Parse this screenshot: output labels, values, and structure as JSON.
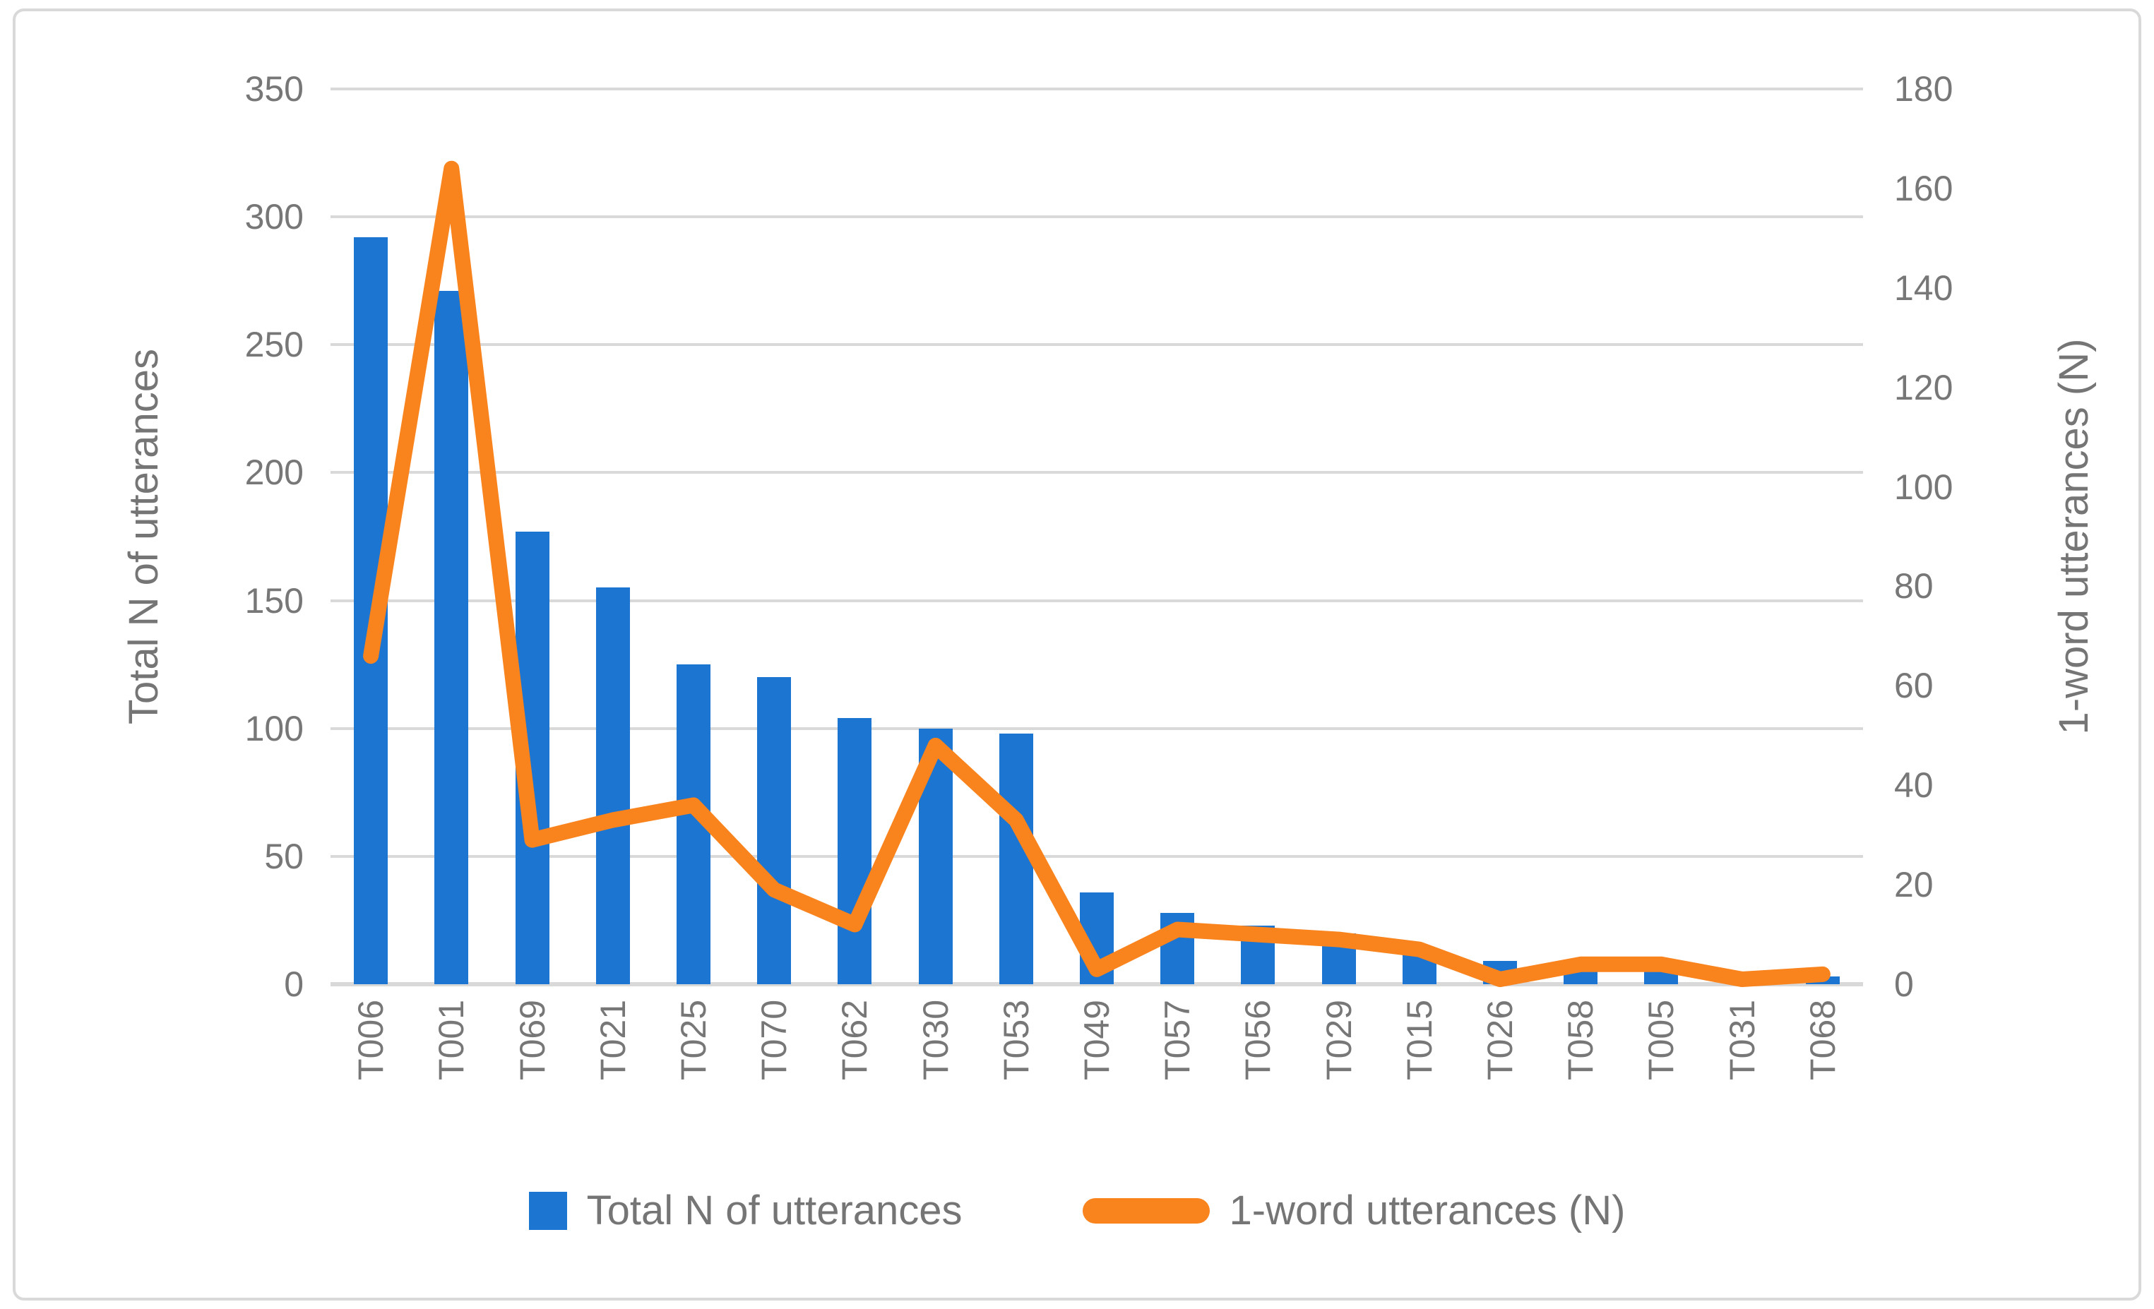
{
  "chart_data": {
    "type": "bar",
    "subtype": "combo-bar-line-dual-axis",
    "categories": [
      "T006",
      "T001",
      "T069",
      "T021",
      "T025",
      "T070",
      "T062",
      "T030",
      "T053",
      "T049",
      "T057",
      "T056",
      "T029",
      "T015",
      "T026",
      "T058",
      "T005",
      "T031",
      "T068"
    ],
    "series": [
      {
        "name": "Total N of utterances",
        "type": "bar",
        "axis": "left",
        "values": [
          292,
          271,
          177,
          155,
          125,
          120,
          104,
          100,
          98,
          36,
          28,
          23,
          20,
          14,
          9,
          5,
          5,
          4,
          3
        ]
      },
      {
        "name": "1-word utterances (N)",
        "type": "line",
        "axis": "right",
        "values": [
          66,
          164,
          29,
          33,
          36,
          19,
          12,
          48,
          33,
          3,
          11,
          10,
          9,
          7,
          1,
          4,
          4,
          1,
          2
        ]
      }
    ],
    "left_axis": {
      "title": "Total N of utterances",
      "min": 0,
      "max": 350,
      "step": 50,
      "ticks": [
        "350",
        "300",
        "250",
        "200",
        "150",
        "100",
        "50",
        "0"
      ]
    },
    "right_axis": {
      "title": "1-word utterances (N)",
      "min": 0,
      "max": 180,
      "step": 20,
      "ticks": [
        "180",
        "160",
        "140",
        "120",
        "100",
        "80",
        "60",
        "40",
        "20",
        "0"
      ]
    },
    "legend": {
      "position": "bottom",
      "items": [
        "Total N of utterances",
        "1-word utterances (N)"
      ]
    },
    "grid": true
  },
  "colors": {
    "bar": "#1B75D1",
    "line": "#F9831D",
    "gridline": "#D9D9D9",
    "frame_border": "#D9D9D9",
    "text": "#777777",
    "background": "#FFFFFF"
  }
}
